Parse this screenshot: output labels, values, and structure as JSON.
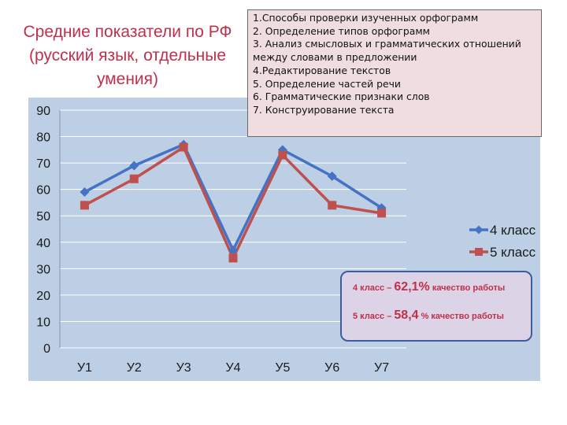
{
  "title_lines": [
    "Средние показатели по РФ",
    "(русский язык, отдельные",
    "умения)"
  ],
  "criteria": [
    "1.Способы проверки изученных орфограмм",
    "2. Определение типов орфограмм",
    "3. Анализ смысловых и  грамматических отношений",
    "между словами в предложении",
    "4.Редактирование текстов",
    "5. Определение частей речи",
    "6. Грамматические признаки слов",
    "7. Конструирование текста"
  ],
  "quality": [
    {
      "prefix": "4 класс – ",
      "value": "62,1%",
      "suffix": " качество работы"
    },
    {
      "prefix": "5 класс – ",
      "value": "58,4",
      "suffix": " % качество работы"
    }
  ],
  "colors": {
    "series_4": "#4472c4",
    "series_5": "#c0504d",
    "panel": "#bccfe4",
    "title": "#c0304a"
  },
  "chart_data": {
    "type": "line",
    "categories": [
      "У1",
      "У2",
      "У3",
      "У4",
      "У5",
      "У6",
      "У7"
    ],
    "y_ticks": [
      "0",
      "10",
      "20",
      "30",
      "40",
      "50",
      "60",
      "70",
      "80",
      "90"
    ],
    "ylim": [
      0,
      90
    ],
    "grid": true,
    "legend_position": "right",
    "series": [
      {
        "name": "4 класс",
        "values": [
          59,
          69,
          77,
          37,
          75,
          65,
          53
        ],
        "marker": "diamond"
      },
      {
        "name": "5 класс",
        "values": [
          54,
          64,
          76,
          34,
          73,
          54,
          51
        ],
        "marker": "square"
      }
    ]
  }
}
